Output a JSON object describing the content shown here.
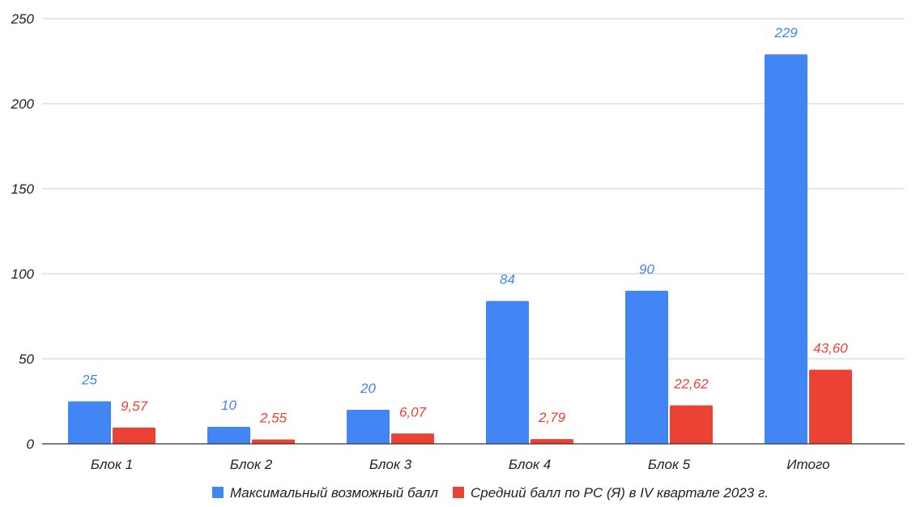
{
  "chart_data": {
    "type": "bar",
    "categories": [
      "Блок 1",
      "Блок 2",
      "Блок 3",
      "Блок 4",
      "Блок 5",
      "Итого"
    ],
    "series": [
      {
        "name": "Максимальный возможный балл",
        "values": [
          25,
          10,
          20,
          84,
          90,
          229
        ],
        "labels": [
          "25",
          "10",
          "20",
          "84",
          "90",
          "229"
        ],
        "color": "#4285f4"
      },
      {
        "name": "Средний балл по РС (Я) в IV квартале 2023 г.",
        "values": [
          9.57,
          2.55,
          6.07,
          2.79,
          22.62,
          43.6
        ],
        "labels": [
          "9,57",
          "2,55",
          "6,07",
          "2,79",
          "22,62",
          "43,60"
        ],
        "color": "#ea4335"
      }
    ],
    "ylim": [
      0,
      250
    ],
    "yticks": [
      "0",
      "50",
      "100",
      "150",
      "200",
      "250"
    ],
    "grid": true,
    "legend_position": "bottom",
    "gridline_color": "#cccccc",
    "axis_color": "#333333"
  }
}
